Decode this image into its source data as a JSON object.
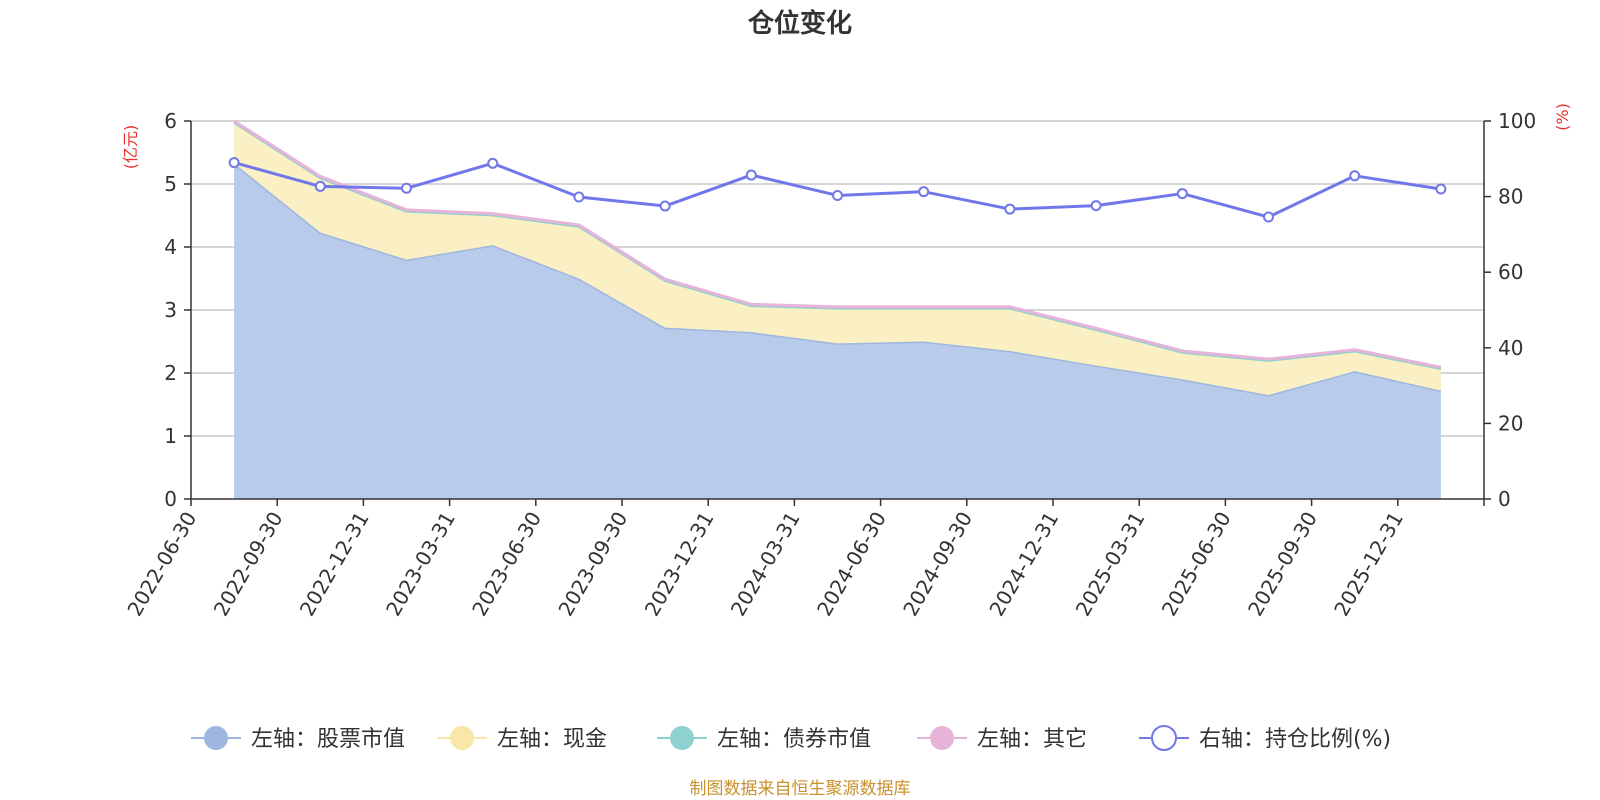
{
  "chart_data": {
    "type": "area",
    "title": "仓位变化",
    "source_note": "制图数据来自恒生聚源数据库",
    "left_axis": {
      "unit": "(亿元)",
      "min": 0,
      "max": 6,
      "ticks": [
        "0",
        "1",
        "2",
        "3",
        "4",
        "5",
        "6"
      ]
    },
    "right_axis": {
      "unit": "(%)",
      "min": 0,
      "max": 100,
      "ticks": [
        "0",
        "20",
        "40",
        "60",
        "80",
        "100"
      ]
    },
    "categories": [
      "2022-06-30",
      "2022-09-30",
      "2022-12-31",
      "2023-03-31",
      "2023-06-30",
      "2023-09-30",
      "2023-12-31",
      "2024-03-31",
      "2024-06-30",
      "2024-09-30",
      "2024-12-31",
      "2025-03-31",
      "2025-06-30",
      "2025-09-30",
      "2025-12-31"
    ],
    "series": [
      {
        "name": "左轴：股票市值",
        "axis": "left",
        "kind": "stacked-area",
        "color": "#9db7e0",
        "fill": "#b8cbea",
        "values": [
          5.33,
          4.23,
          3.8,
          4.03,
          3.5,
          2.72,
          2.65,
          2.47,
          2.5,
          2.35,
          2.12,
          1.9,
          1.65,
          2.03,
          1.72
        ]
      },
      {
        "name": "左轴：现金",
        "axis": "left",
        "kind": "stacked-area",
        "color": "#f8e7a8",
        "fill": "#fbefc4",
        "values": [
          0.65,
          0.87,
          0.77,
          0.48,
          0.83,
          0.75,
          0.42,
          0.56,
          0.53,
          0.68,
          0.57,
          0.43,
          0.55,
          0.32,
          0.35
        ]
      },
      {
        "name": "左轴：债券市值",
        "axis": "left",
        "kind": "stacked-area",
        "color": "#8fd0d0",
        "fill": "#8fd0d0",
        "values": [
          0,
          0,
          0,
          0,
          0,
          0,
          0,
          0,
          0,
          0,
          0,
          0,
          0,
          0,
          0
        ]
      },
      {
        "name": "左轴：其它",
        "axis": "left",
        "kind": "stacked-area",
        "color": "#e6b4d8",
        "fill": "#e6b4d8",
        "values": [
          0.02,
          0.02,
          0.02,
          0.02,
          0.02,
          0.02,
          0.02,
          0.02,
          0.02,
          0.02,
          0.02,
          0.02,
          0.02,
          0.02,
          0.02
        ]
      },
      {
        "name": "右轴：持仓比例(%)",
        "axis": "right",
        "kind": "line",
        "color": "#7177e8",
        "values": [
          89.0,
          82.7,
          82.2,
          88.8,
          79.9,
          77.5,
          85.7,
          80.3,
          81.3,
          76.7,
          77.6,
          80.8,
          74.6,
          85.5,
          82.0
        ]
      }
    ]
  }
}
